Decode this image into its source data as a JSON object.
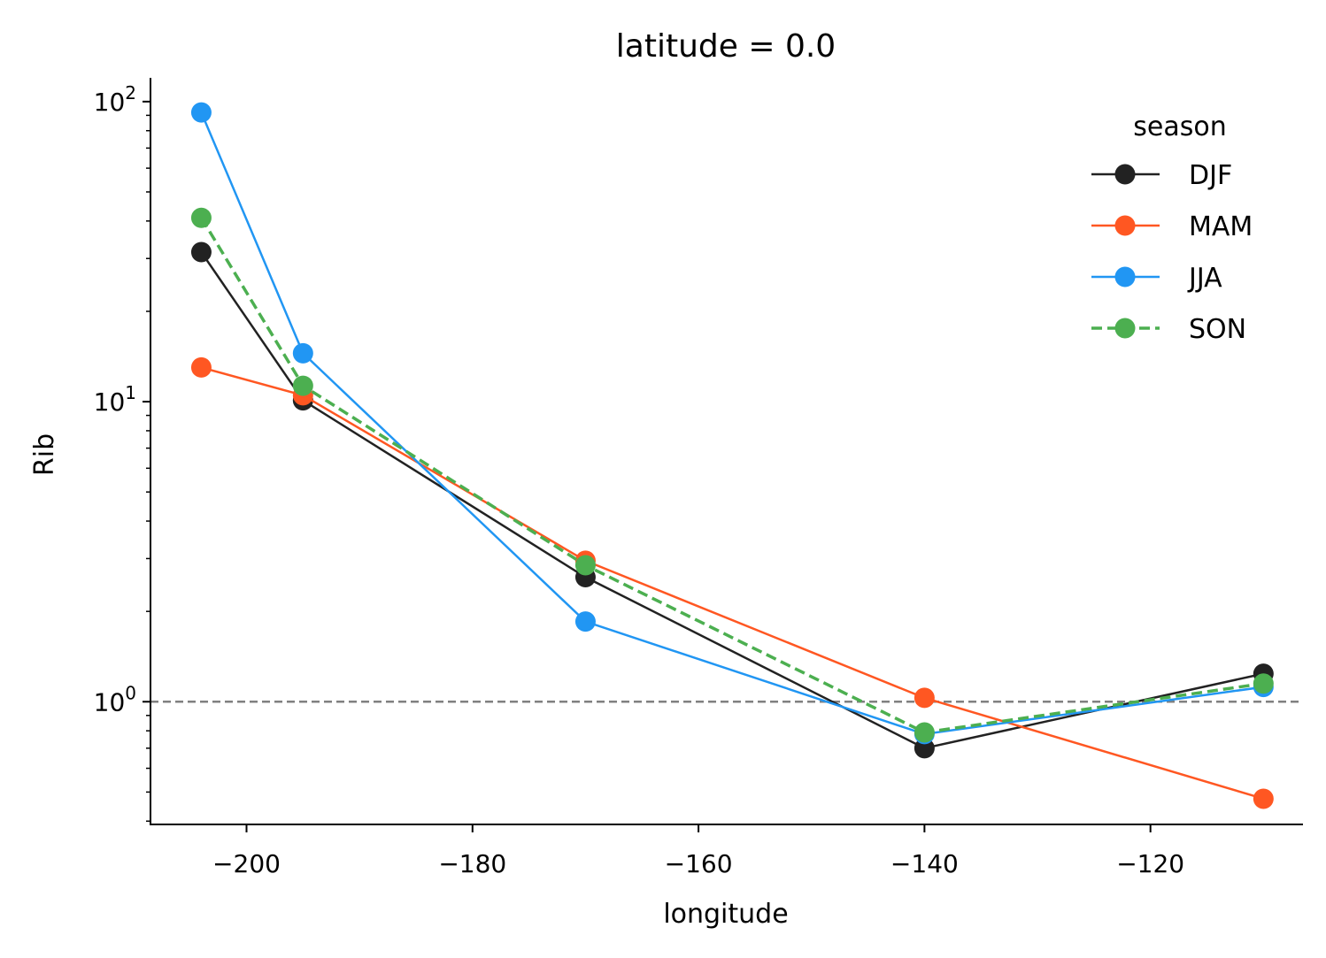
{
  "chart_data": {
    "type": "line",
    "title": "latitude = 0.0",
    "xlabel": "longitude",
    "ylabel": "Rib",
    "xscale": "linear",
    "yscale": "log",
    "xlim": [
      -208.5,
      -106.5
    ],
    "ylim": [
      0.39,
      120
    ],
    "x_ticks": [
      {
        "value": -200,
        "label": "−200"
      },
      {
        "value": -180,
        "label": "−180"
      },
      {
        "value": -160,
        "label": "−160"
      },
      {
        "value": -140,
        "label": "−140"
      },
      {
        "value": -120,
        "label": "−120"
      }
    ],
    "y_ticks": [
      {
        "value": 1,
        "base": "10",
        "exp": "0"
      },
      {
        "value": 10,
        "base": "10",
        "exp": "1"
      },
      {
        "value": 100,
        "base": "10",
        "exp": "2"
      }
    ],
    "reference_line": {
      "y": 1.0,
      "color": "#808080",
      "style": "dashed"
    },
    "grid": false,
    "legend": {
      "title": "season",
      "position": "top-right"
    },
    "x": [
      -204,
      -195,
      -170,
      -140,
      -110
    ],
    "series": [
      {
        "name": "DJF",
        "color": "#222222",
        "style": "solid",
        "values": [
          31.5,
          10.1,
          2.6,
          0.7,
          1.24
        ]
      },
      {
        "name": "MAM",
        "color": "#ff5722",
        "style": "solid",
        "values": [
          13.0,
          10.5,
          2.95,
          1.03,
          0.475
        ]
      },
      {
        "name": "JJA",
        "color": "#2196f3",
        "style": "solid",
        "values": [
          92,
          14.5,
          1.85,
          0.78,
          1.12
        ]
      },
      {
        "name": "SON",
        "color": "#4caf50",
        "style": "dashed",
        "values": [
          41,
          11.3,
          2.85,
          0.79,
          1.15
        ]
      }
    ]
  }
}
